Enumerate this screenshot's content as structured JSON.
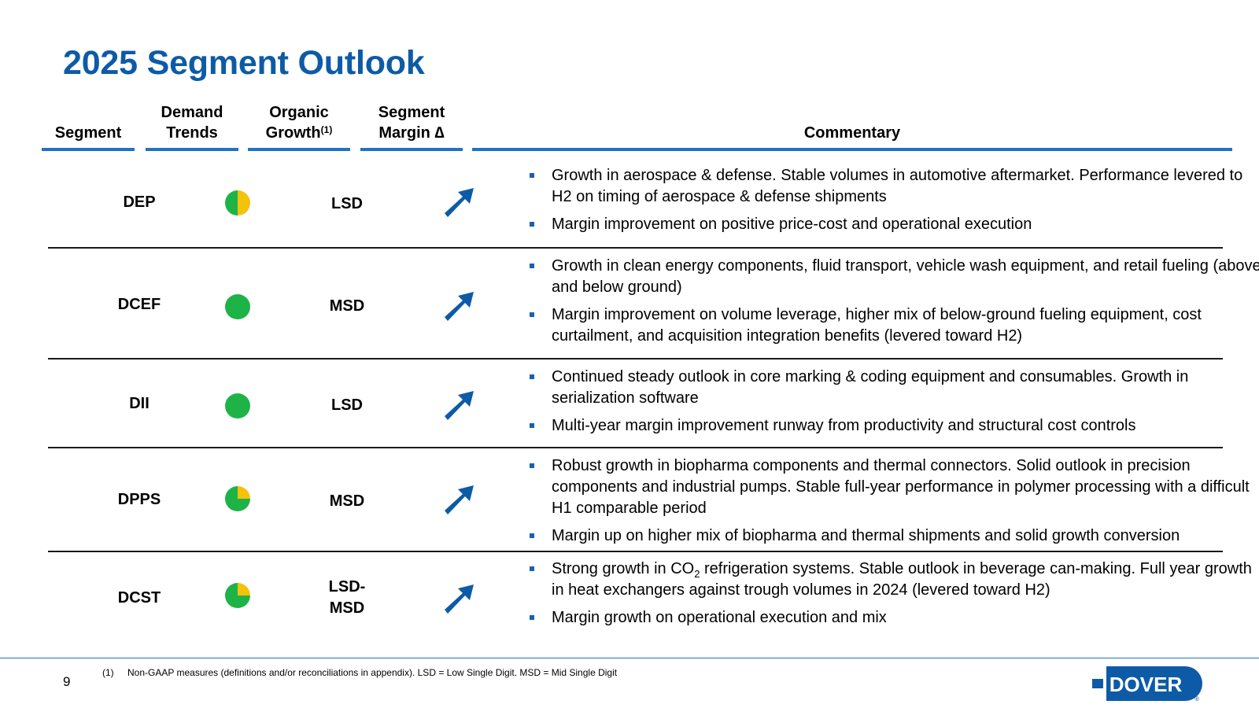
{
  "title": "2025 Segment Outlook",
  "headers": {
    "segment": "Segment",
    "demand_line1": "Demand",
    "demand_line2": "Trends",
    "organic_line1": "Organic",
    "organic_line2": "Growth",
    "organic_sup": "(1)",
    "margin_line1": "Segment",
    "margin_line2": "Margin ∆",
    "commentary": "Commentary"
  },
  "colors": {
    "green": "#1db347",
    "yellow": "#f5c20b",
    "blue": "#0d5ba6"
  },
  "rows": [
    {
      "segment": "DEP",
      "demand": {
        "icon": "half-green-half-yellow-circle-icon",
        "green_fraction": 0.5
      },
      "growth": "LSD",
      "margin": "up-right-arrow-icon",
      "bullets": [
        "Growth in aerospace & defense. Stable volumes in automotive aftermarket. Performance levered to H2 on timing of aerospace & defense shipments",
        "Margin improvement on positive price-cost and operational execution"
      ]
    },
    {
      "segment": "DCEF",
      "demand": {
        "icon": "green-circle-icon",
        "green_fraction": 1
      },
      "growth": "MSD",
      "margin": "up-right-arrow-icon",
      "bullets": [
        "Growth in clean energy components, fluid transport, vehicle wash equipment, and retail fueling (above and below ground)",
        "Margin improvement on volume leverage, higher mix of below-ground fueling equipment, cost curtailment, and acquisition integration benefits (levered toward H2)"
      ]
    },
    {
      "segment": "DII",
      "demand": {
        "icon": "green-circle-icon",
        "green_fraction": 1
      },
      "growth": "LSD",
      "margin": "up-right-arrow-icon",
      "bullets": [
        "Continued steady outlook in core marking & coding equipment and consumables. Growth in serialization software",
        "Multi-year margin improvement runway from productivity and structural cost controls"
      ]
    },
    {
      "segment": "DPPS",
      "demand": {
        "icon": "quarter-yellow-circle-icon",
        "green_fraction": 0.75
      },
      "growth": "MSD",
      "margin": "up-right-arrow-icon",
      "bullets": [
        "Robust growth in biopharma components and thermal connectors. Solid outlook in precision components and industrial pumps. Stable full-year performance in polymer processing with a difficult H1 comparable period",
        "Margin up on higher mix of biopharma and thermal shipments and solid growth conversion"
      ]
    },
    {
      "segment": "DCST",
      "demand": {
        "icon": "quarter-yellow-circle-icon",
        "green_fraction": 0.75
      },
      "growth_line1": "LSD-",
      "growth_line2": "MSD",
      "margin": "up-right-arrow-icon",
      "bullet1_pre": "Strong growth in CO",
      "bullet1_sub": "2",
      "bullet1_post": " refrigeration systems. Stable outlook in beverage can-making. Full year growth in heat exchangers against trough volumes in 2024 (levered toward H2)",
      "bullet2": "Margin growth on operational execution and mix"
    }
  ],
  "footer": {
    "page_number": "9",
    "footnote_num": "(1)",
    "footnote_text": "Non-GAAP measures (definitions and/or reconciliations in appendix). LSD = Low Single Digit. MSD = Mid Single Digit",
    "logo_text": "DOVER",
    "logo_mark": "®"
  }
}
